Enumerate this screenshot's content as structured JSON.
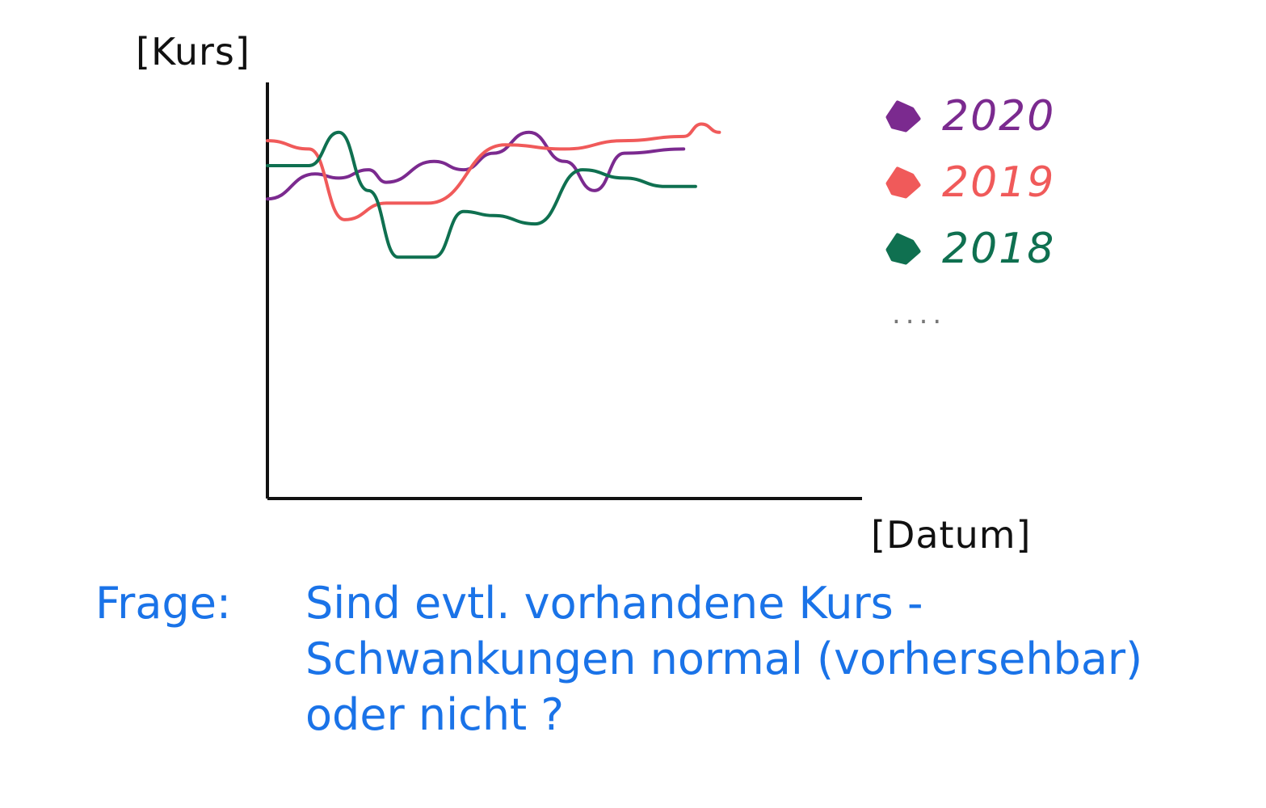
{
  "chart_data": {
    "type": "line",
    "xlabel": "[Datum]",
    "ylabel": "[Kurs]",
    "legend_placement": "right",
    "legend_more": "....",
    "series": [
      {
        "name": "2020",
        "color": "#7b2a8f",
        "values": [
          [
            0,
            0.72
          ],
          [
            0.08,
            0.78
          ],
          [
            0.12,
            0.77
          ],
          [
            0.17,
            0.79
          ],
          [
            0.2,
            0.76
          ],
          [
            0.28,
            0.81
          ],
          [
            0.33,
            0.79
          ],
          [
            0.38,
            0.83
          ],
          [
            0.44,
            0.88
          ],
          [
            0.5,
            0.81
          ],
          [
            0.55,
            0.74
          ],
          [
            0.6,
            0.83
          ],
          [
            0.7,
            0.84
          ]
        ]
      },
      {
        "name": "2019",
        "color": "#f05a5a",
        "values": [
          [
            0,
            0.86
          ],
          [
            0.07,
            0.84
          ],
          [
            0.13,
            0.67
          ],
          [
            0.2,
            0.71
          ],
          [
            0.27,
            0.71
          ],
          [
            0.4,
            0.85
          ],
          [
            0.5,
            0.84
          ],
          [
            0.6,
            0.86
          ],
          [
            0.7,
            0.87
          ],
          [
            0.73,
            0.9
          ],
          [
            0.76,
            0.88
          ]
        ]
      },
      {
        "name": "2018",
        "color": "#0f7050",
        "values": [
          [
            0,
            0.8
          ],
          [
            0.07,
            0.8
          ],
          [
            0.12,
            0.88
          ],
          [
            0.17,
            0.74
          ],
          [
            0.22,
            0.58
          ],
          [
            0.28,
            0.58
          ],
          [
            0.33,
            0.69
          ],
          [
            0.38,
            0.68
          ],
          [
            0.45,
            0.66
          ],
          [
            0.53,
            0.79
          ],
          [
            0.6,
            0.77
          ],
          [
            0.67,
            0.75
          ],
          [
            0.72,
            0.75
          ]
        ]
      }
    ]
  },
  "question": {
    "label": "Frage:",
    "lines": [
      "Sind evtl. vorhandene Kurs -",
      "Schwankungen normal (vorhersehbar)",
      "oder nicht ?"
    ]
  }
}
